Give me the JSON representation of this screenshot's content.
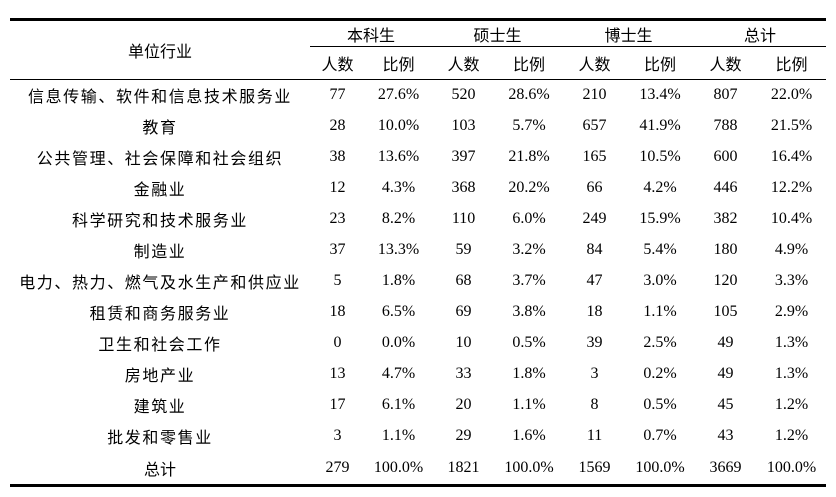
{
  "table": {
    "header": {
      "industry_label": "单位行业",
      "groups": [
        "本科生",
        "硕士生",
        "博士生",
        "总计"
      ],
      "sub_labels": [
        "人数",
        "比例"
      ]
    },
    "rows": [
      {
        "name": "信息传输、软件和信息技术服务业",
        "values": [
          "77",
          "27.6%",
          "520",
          "28.6%",
          "210",
          "13.4%",
          "807",
          "22.0%"
        ]
      },
      {
        "name": "教育",
        "values": [
          "28",
          "10.0%",
          "103",
          "5.7%",
          "657",
          "41.9%",
          "788",
          "21.5%"
        ]
      },
      {
        "name": "公共管理、社会保障和社会组织",
        "values": [
          "38",
          "13.6%",
          "397",
          "21.8%",
          "165",
          "10.5%",
          "600",
          "16.4%"
        ]
      },
      {
        "name": "金融业",
        "values": [
          "12",
          "4.3%",
          "368",
          "20.2%",
          "66",
          "4.2%",
          "446",
          "12.2%"
        ]
      },
      {
        "name": "科学研究和技术服务业",
        "values": [
          "23",
          "8.2%",
          "110",
          "6.0%",
          "249",
          "15.9%",
          "382",
          "10.4%"
        ]
      },
      {
        "name": "制造业",
        "values": [
          "37",
          "13.3%",
          "59",
          "3.2%",
          "84",
          "5.4%",
          "180",
          "4.9%"
        ]
      },
      {
        "name": "电力、热力、燃气及水生产和供应业",
        "values": [
          "5",
          "1.8%",
          "68",
          "3.7%",
          "47",
          "3.0%",
          "120",
          "3.3%"
        ]
      },
      {
        "name": "租赁和商务服务业",
        "values": [
          "18",
          "6.5%",
          "69",
          "3.8%",
          "18",
          "1.1%",
          "105",
          "2.9%"
        ]
      },
      {
        "name": "卫生和社会工作",
        "values": [
          "0",
          "0.0%",
          "10",
          "0.5%",
          "39",
          "2.5%",
          "49",
          "1.3%"
        ]
      },
      {
        "name": "房地产业",
        "values": [
          "13",
          "4.7%",
          "33",
          "1.8%",
          "3",
          "0.2%",
          "49",
          "1.3%"
        ]
      },
      {
        "name": "建筑业",
        "values": [
          "17",
          "6.1%",
          "20",
          "1.1%",
          "8",
          "0.5%",
          "45",
          "1.2%"
        ]
      },
      {
        "name": "批发和零售业",
        "values": [
          "3",
          "1.1%",
          "29",
          "1.6%",
          "11",
          "0.7%",
          "43",
          "1.2%"
        ]
      }
    ],
    "totals": {
      "label": "总计",
      "values": [
        "279",
        "100.0%",
        "1821",
        "100.0%",
        "1569",
        "100.0%",
        "3669",
        "100.0%"
      ]
    }
  },
  "colors": {
    "text": "#000000",
    "background": "#ffffff",
    "rule": "#000000"
  }
}
